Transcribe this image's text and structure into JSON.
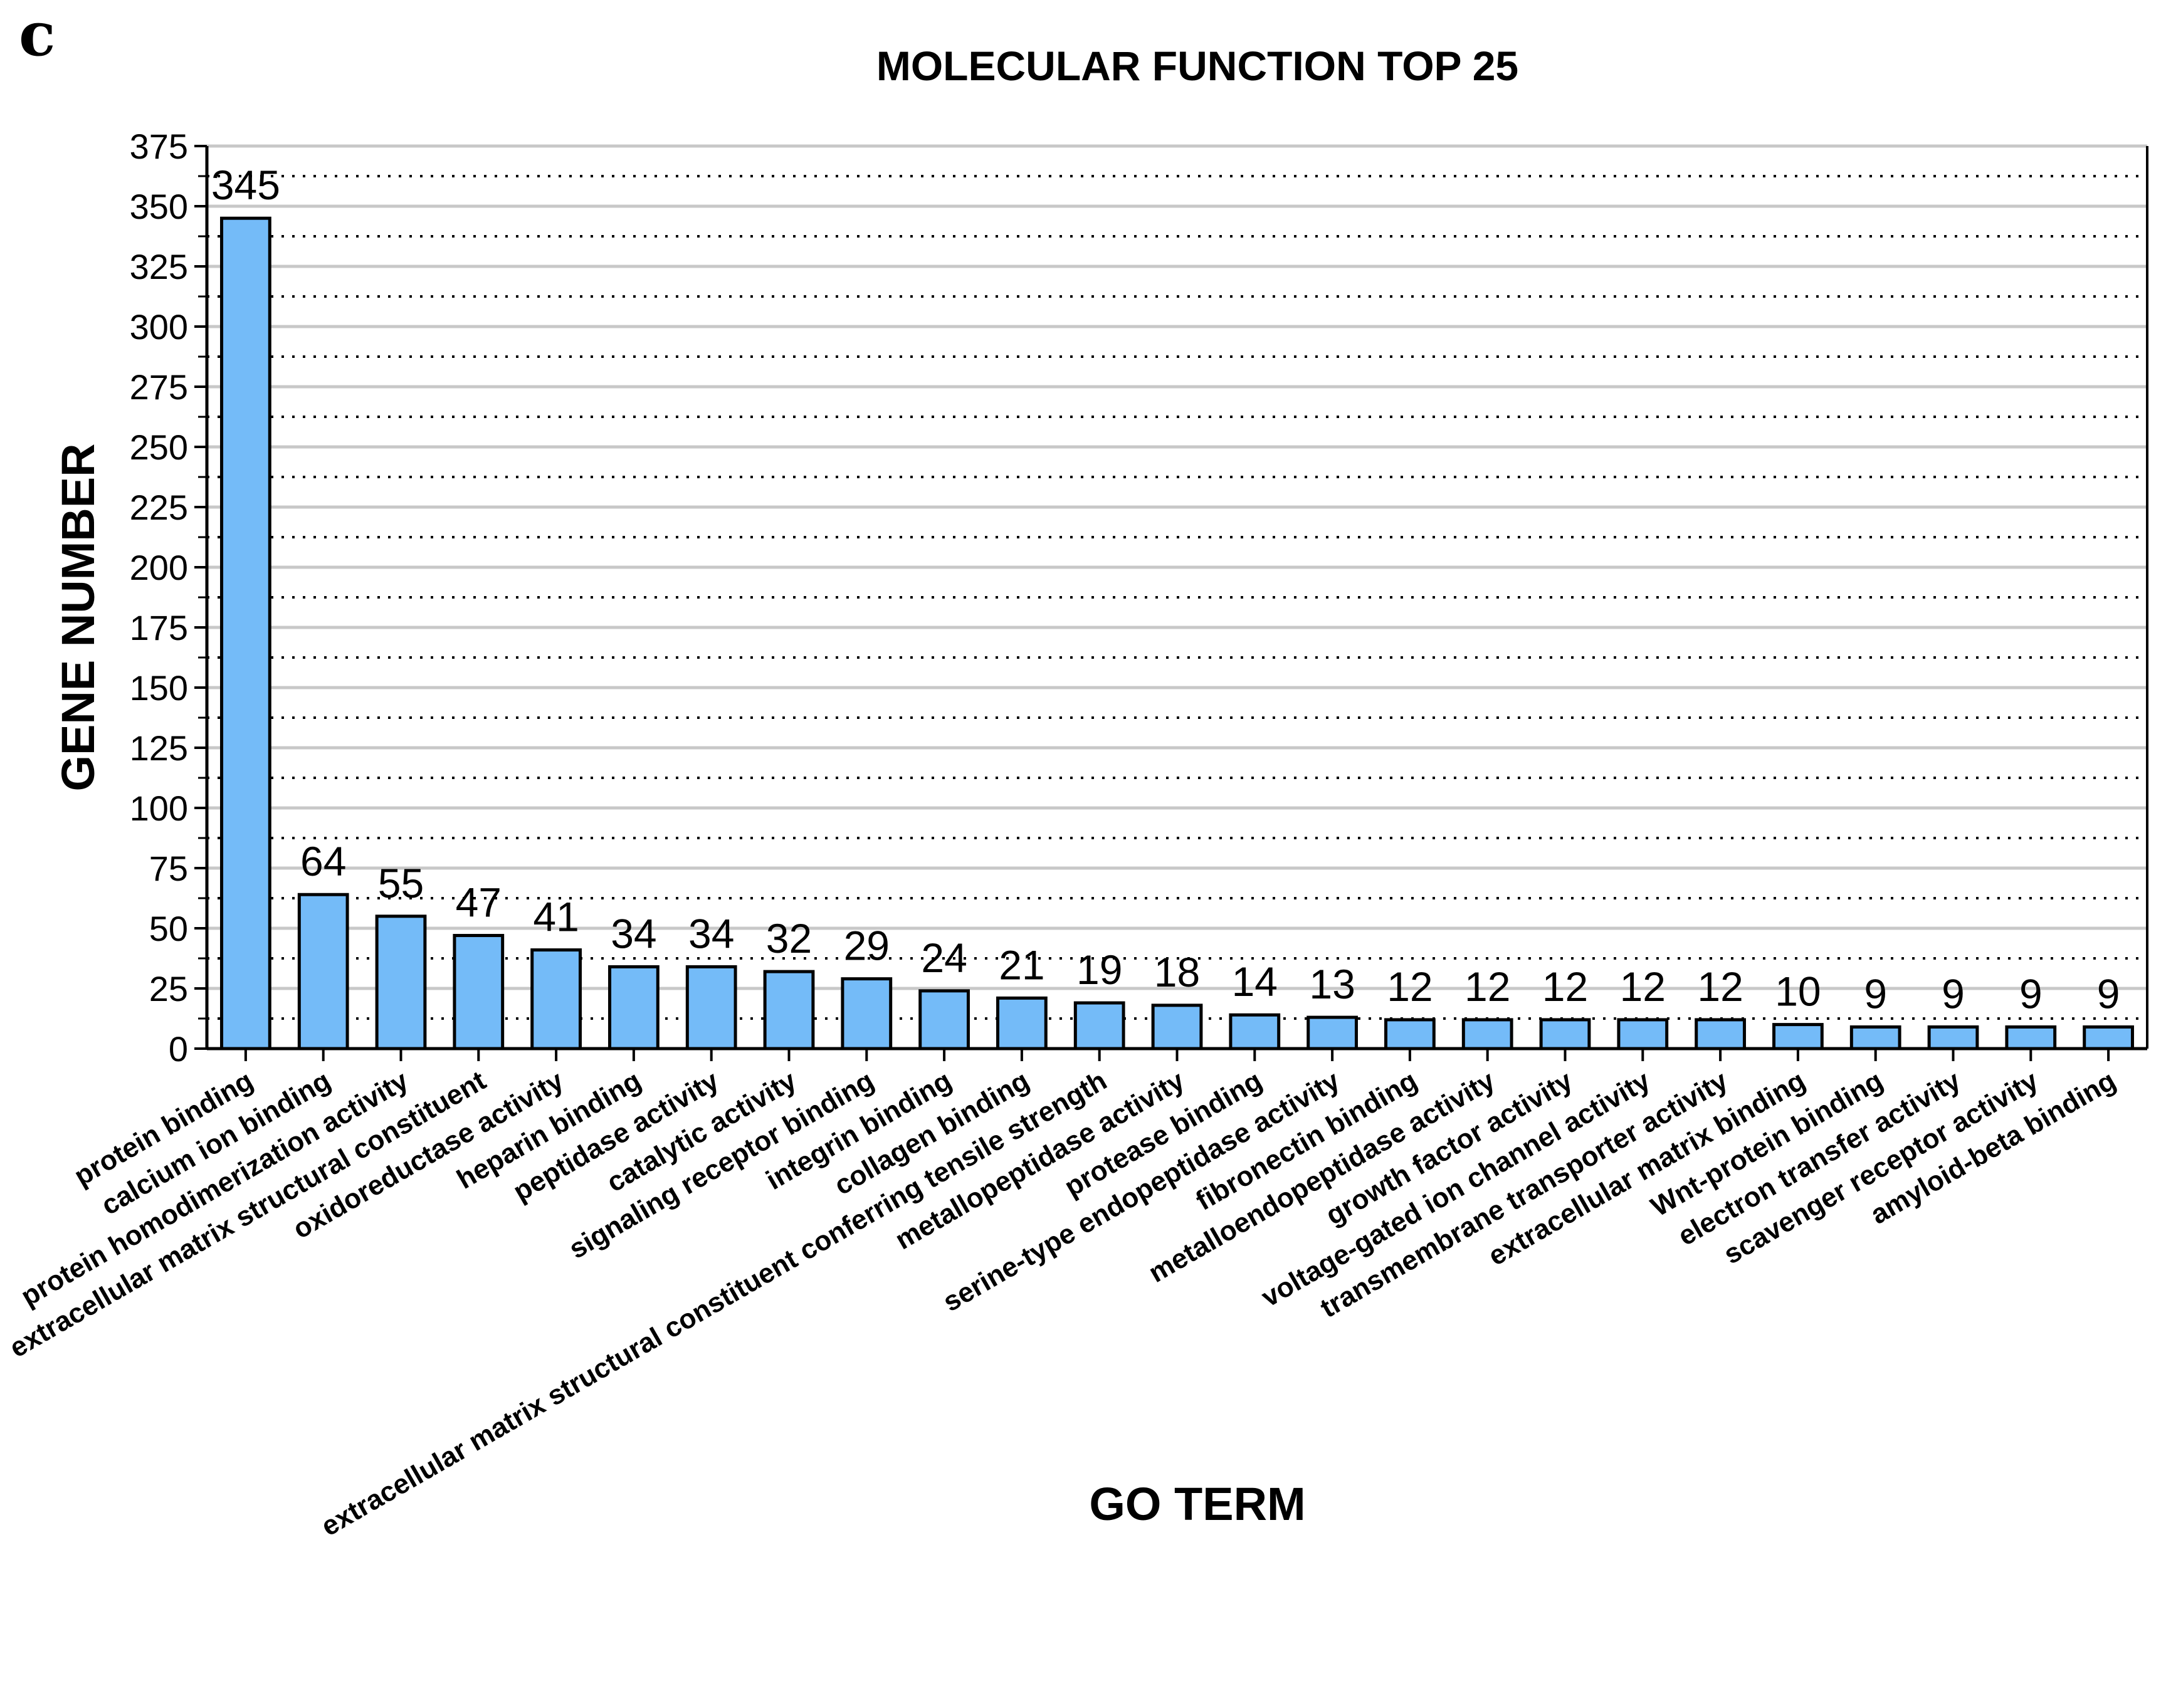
{
  "panel_label": "c",
  "chart_data": {
    "type": "bar",
    "title": "MOLECULAR FUNCTION TOP 25",
    "xlabel": "GO TERM",
    "ylabel": "GENE NUMBER",
    "ylim": [
      0,
      375
    ],
    "yticks": [
      0,
      25,
      50,
      75,
      100,
      125,
      150,
      175,
      200,
      225,
      250,
      275,
      300,
      325,
      350,
      375
    ],
    "grid": true,
    "bar_color": "#74BBF8",
    "categories": [
      "protein binding",
      "calcium ion binding",
      "protein homodimerization activity",
      "extracellular matrix structural constituent",
      "oxidoreductase activity",
      "heparin binding",
      "peptidase activity",
      "catalytic activity",
      "signaling receptor binding",
      "integrin binding",
      "collagen binding",
      "extracellular matrix structural constituent conferring tensile strength",
      "metallopeptidase activity",
      "protease binding",
      "serine-type endopeptidase activity",
      "fibronectin binding",
      "metalloendopeptidase activity",
      "growth factor activity",
      "voltage-gated ion channel activity",
      "transmembrane transporter activity",
      "extracellular matrix binding",
      "Wnt-protein binding",
      "electron transfer activity",
      "scavenger receptor activity",
      "amyloid-beta binding"
    ],
    "values": [
      345,
      64,
      55,
      47,
      41,
      34,
      34,
      32,
      29,
      24,
      21,
      19,
      18,
      14,
      13,
      12,
      12,
      12,
      12,
      12,
      10,
      9,
      9,
      9,
      9
    ]
  }
}
